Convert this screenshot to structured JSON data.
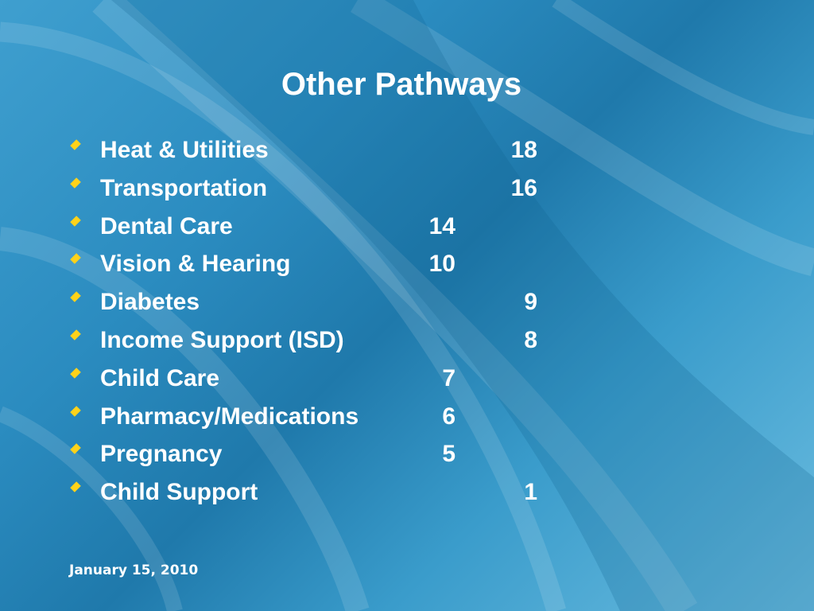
{
  "title": "Other Pathways",
  "items": [
    {
      "label": "Heat & Utilities",
      "count": 18
    },
    {
      "label": "Transportation",
      "count": 16
    },
    {
      "label": "Dental Care",
      "count": 14
    },
    {
      "label": "Vision & Hearing",
      "count": 10
    },
    {
      "label": "Diabetes",
      "count": 9
    },
    {
      "label": "Income Support (ISD)",
      "count": 8
    },
    {
      "label": "Child Care",
      "count": 7
    },
    {
      "label": "Pharmacy/Medications",
      "count": 6
    },
    {
      "label": "Pregnancy",
      "count": 5
    },
    {
      "label": "Child Support",
      "count": 1
    }
  ],
  "footer": "January 15, 2010"
}
